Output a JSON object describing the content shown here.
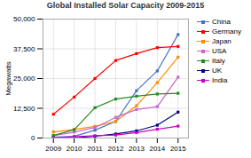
{
  "chart_data": {
    "type": "line",
    "title": "Global Installed Solar Capacity 2009-2015",
    "ylabel": "Megawatts",
    "x": [
      2009,
      2010,
      2011,
      2012,
      2013,
      2014,
      2015
    ],
    "series": [
      {
        "name": "China",
        "color": "#4472c4",
        "values": [
          300,
          700,
          3300,
          7000,
          19900,
          28200,
          43500
        ]
      },
      {
        "name": "Germany",
        "color": "#ff0000",
        "values": [
          10000,
          17200,
          25000,
          32600,
          35500,
          38000,
          38500
        ]
      },
      {
        "name": "Japan",
        "color": "#ff8c00",
        "values": [
          2600,
          3600,
          4900,
          7000,
          13600,
          23300,
          34000
        ]
      },
      {
        "name": "USA",
        "color": "#cc66cc",
        "values": [
          1000,
          2500,
          4400,
          8700,
          12000,
          13200,
          25600
        ]
      },
      {
        "name": "Italy",
        "color": "#228B22",
        "values": [
          1100,
          3500,
          12750,
          16400,
          17600,
          18500,
          18800
        ]
      },
      {
        "name": "UK",
        "color": "#000080",
        "values": [
          30,
          70,
          750,
          1700,
          3000,
          5400,
          10900
        ]
      },
      {
        "name": "India",
        "color": "#cc00cc",
        "values": [
          120,
          480,
          950,
          1250,
          2300,
          3700,
          5000
        ]
      }
    ],
    "xlim": [
      2008.5,
      2015.5
    ],
    "xticks": [
      2009,
      2010,
      2011,
      2012,
      2013,
      2014,
      2015
    ],
    "ylim": [
      0,
      50000
    ],
    "yticks": [
      0,
      {
        "value": 12500,
        "label": "12,500"
      },
      {
        "value": 25000,
        "label": "25,000"
      },
      {
        "value": 37500,
        "label": "37,500"
      },
      {
        "value": 50000,
        "label": "50,000"
      }
    ],
    "grid": true,
    "legend": "right",
    "marker": "square"
  }
}
